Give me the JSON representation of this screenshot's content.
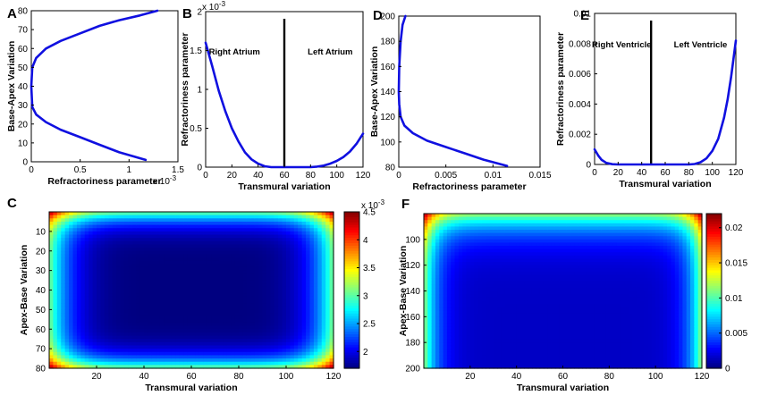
{
  "chart_data": [
    {
      "id": "A",
      "type": "line",
      "panel_label": "A",
      "xlabel": "Refractoriness parameter",
      "ylabel": "Base-Apex Variation",
      "xlim": [
        0,
        0.0015
      ],
      "ylim": [
        0,
        80
      ],
      "xticks": [
        0,
        0.0005,
        0.001,
        0.0015
      ],
      "xtick_labels": [
        "0",
        "0.5",
        "1",
        "1.5"
      ],
      "x_exponent": "x 10",
      "x_exponent_power": "-3",
      "yticks": [
        0,
        10,
        20,
        30,
        40,
        50,
        60,
        70,
        80
      ],
      "yticks_labels": [
        "0",
        "10",
        "20",
        "30",
        "40",
        "50",
        "60",
        "70",
        "80"
      ],
      "series": [
        {
          "name": "curve",
          "color": "#1010e0",
          "x": [
            0.00117,
            0.0009,
            0.0007,
            0.0005,
            0.0003,
            0.00015,
            5e-05,
            1e-05,
            0.0,
            1e-05,
            5e-05,
            0.00015,
            0.0003,
            0.0005,
            0.0007,
            0.0009,
            0.00111,
            0.00129
          ],
          "y": [
            1,
            5,
            9,
            13,
            17,
            21,
            25,
            29,
            40,
            50,
            55,
            60,
            64,
            68,
            72,
            75,
            77.5,
            80
          ]
        }
      ]
    },
    {
      "id": "B",
      "type": "line",
      "panel_label": "B",
      "xlabel": "Transmural variation",
      "ylabel": "Refractoriness parameter",
      "xlim": [
        0,
        120
      ],
      "ylim": [
        0,
        0.002
      ],
      "xticks": [
        0,
        20,
        40,
        60,
        80,
        100,
        120
      ],
      "xtick_labels": [
        "0",
        "20",
        "40",
        "60",
        "80",
        "100",
        "120"
      ],
      "yticks": [
        0,
        0.0005,
        0.001,
        0.0015,
        0.002
      ],
      "ytick_labels": [
        "0",
        "0.5",
        "1",
        "1.5",
        "2"
      ],
      "y_exponent": "x 10",
      "y_exponent_power": "-3",
      "divider_x": 60,
      "annotations": [
        "Right Atrium",
        "Left Atrium"
      ],
      "series": [
        {
          "name": "curve",
          "color": "#1010e0",
          "x": [
            0,
            5,
            10,
            15,
            20,
            25,
            30,
            35,
            40,
            45,
            50,
            60,
            70,
            80,
            85,
            90,
            95,
            100,
            105,
            110,
            115,
            120
          ],
          "y": [
            0.0016,
            0.0013,
            0.00098,
            0.00072,
            0.0005,
            0.00033,
            0.00019,
            0.0001,
            4.5e-05,
            1.2e-05,
            0.0,
            0.0,
            0.0,
            0.0,
            7e-06,
            2e-05,
            4.5e-05,
            8e-05,
            0.00013,
            0.0002,
            0.0003,
            0.00043
          ]
        }
      ]
    },
    {
      "id": "C",
      "type": "heatmap",
      "panel_label": "C",
      "xlabel": "Transmural variation",
      "ylabel": "Apex-Base Variation",
      "xlim": [
        0,
        120
      ],
      "ylim": [
        0,
        80
      ],
      "xticks": [
        20,
        40,
        60,
        80,
        100,
        120
      ],
      "xtick_labels": [
        "20",
        "40",
        "60",
        "80",
        "100",
        "120"
      ],
      "yticks": [
        10,
        20,
        30,
        40,
        50,
        60,
        70,
        80
      ],
      "ytick_labels": [
        "10",
        "20",
        "30",
        "40",
        "50",
        "60",
        "70",
        "80"
      ],
      "colorbar_min": 0.0017,
      "colorbar_max": 0.0045,
      "colorbar_ticks": [
        0.002,
        0.0025,
        0.003,
        0.0035,
        0.004,
        0.0045
      ],
      "colorbar_tick_labels": [
        "2",
        "2.5",
        "3",
        "3.5",
        "4",
        "4.5"
      ],
      "colorbar_exponent": "x 10",
      "colorbar_exponent_power": "-3"
    },
    {
      "id": "D",
      "type": "line",
      "panel_label": "D",
      "xlabel": "Refractoriness parameter",
      "ylabel": "Base-Apex Variation",
      "xlim": [
        0,
        0.015
      ],
      "ylim": [
        80,
        200
      ],
      "xticks": [
        0,
        0.005,
        0.01,
        0.015
      ],
      "xtick_labels": [
        "0",
        "0.005",
        "0.01",
        "0.015"
      ],
      "yticks": [
        80,
        100,
        120,
        140,
        160,
        180,
        200
      ],
      "ytick_labels": [
        "80",
        "100",
        "120",
        "140",
        "160",
        "180",
        "200"
      ],
      "series": [
        {
          "name": "curve",
          "color": "#1010e0",
          "x": [
            0.0115,
            0.009,
            0.007,
            0.005,
            0.003,
            0.0015,
            0.0006,
            0.0002,
            5e-05,
            0.0,
            5e-05,
            0.0002,
            0.0004,
            0.0007
          ],
          "y": [
            81,
            86,
            91,
            96,
            101,
            107,
            113,
            120,
            130,
            140,
            160,
            180,
            193,
            200
          ]
        }
      ]
    },
    {
      "id": "E",
      "type": "line",
      "panel_label": "E",
      "xlabel": "Transmural variation",
      "ylabel": "Refractoriness parameter",
      "xlim": [
        0,
        120
      ],
      "ylim": [
        0,
        0.01
      ],
      "xticks": [
        0,
        20,
        40,
        60,
        80,
        100,
        120
      ],
      "xtick_labels": [
        "0",
        "20",
        "40",
        "60",
        "80",
        "100",
        "120"
      ],
      "yticks": [
        0,
        0.002,
        0.004,
        0.006,
        0.008,
        0.01
      ],
      "ytick_labels": [
        "0",
        "0.002",
        "0.004",
        "0.006",
        "0.008",
        "0.01"
      ],
      "divider_x": 48,
      "annotations": [
        "Right Ventricle",
        "Left Ventricle"
      ],
      "series": [
        {
          "name": "curve",
          "color": "#1010e0",
          "x": [
            0,
            3,
            6,
            10,
            15,
            20,
            30,
            80,
            85,
            90,
            95,
            100,
            105,
            110,
            113,
            116,
            120
          ],
          "y": [
            0.001,
            0.0006,
            0.0003,
            0.0001,
            2e-05,
            0.0,
            0.0,
            0.0,
            3e-05,
            0.00015,
            0.0004,
            0.0009,
            0.0017,
            0.0031,
            0.0043,
            0.0058,
            0.0082
          ]
        }
      ]
    },
    {
      "id": "F",
      "type": "heatmap",
      "panel_label": "F",
      "xlabel": "Transmural variation",
      "ylabel": "Apex-Base Variation",
      "xlim": [
        0,
        120
      ],
      "ylim": [
        80,
        200
      ],
      "xticks": [
        20,
        40,
        60,
        80,
        100,
        120
      ],
      "xtick_labels": [
        "20",
        "40",
        "60",
        "80",
        "100",
        "120"
      ],
      "yticks": [
        100,
        120,
        140,
        160,
        180,
        200
      ],
      "ytick_labels": [
        "100",
        "120",
        "140",
        "160",
        "180",
        "200"
      ],
      "colorbar_min": 0,
      "colorbar_max": 0.022,
      "colorbar_ticks": [
        0,
        0.005,
        0.01,
        0.015,
        0.02
      ],
      "colorbar_tick_labels": [
        "0",
        "0.005",
        "0.01",
        "0.015",
        "0.02"
      ]
    }
  ]
}
